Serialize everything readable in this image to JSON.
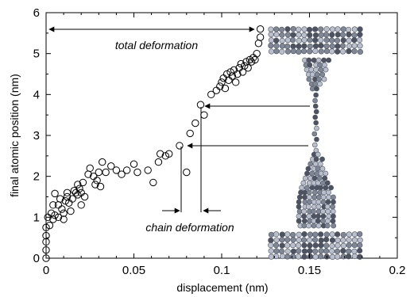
{
  "chart_data": {
    "type": "scatter",
    "xlabel": "displacement (nm)",
    "ylabel": "final atomic position (nm)",
    "xlim": [
      0,
      0.2
    ],
    "ylim": [
      0,
      6
    ],
    "xticks": [
      {
        "value": 0,
        "label": "0"
      },
      {
        "value": 0.05,
        "label": "0.05"
      },
      {
        "value": 0.1,
        "label": "0.1"
      },
      {
        "value": 0.15,
        "label": "0.15"
      },
      {
        "value": 0.2,
        "label": "0.2"
      }
    ],
    "yticks": [
      {
        "value": 0,
        "label": "0"
      },
      {
        "value": 1,
        "label": "1"
      },
      {
        "value": 2,
        "label": "2"
      },
      {
        "value": 3,
        "label": "3"
      },
      {
        "value": 4,
        "label": "4"
      },
      {
        "value": 5,
        "label": "5"
      },
      {
        "value": 6,
        "label": "6"
      }
    ],
    "grid": false,
    "marker": "open-circle",
    "points": [
      [
        0,
        0.0
      ],
      [
        0,
        0.2
      ],
      [
        0,
        0.4
      ],
      [
        0,
        0.55
      ],
      [
        0,
        0.75
      ],
      [
        0.002,
        0.8
      ],
      [
        0.001,
        1.0
      ],
      [
        0.003,
        1.1
      ],
      [
        0.004,
        0.95
      ],
      [
        0.005,
        1.05
      ],
      [
        0.004,
        1.3
      ],
      [
        0.005,
        1.58
      ],
      [
        0.007,
        1.3
      ],
      [
        0.008,
        1.45
      ],
      [
        0.007,
        1.0
      ],
      [
        0.009,
        1.2
      ],
      [
        0.01,
        1.1
      ],
      [
        0.011,
        1.4
      ],
      [
        0.012,
        1.6
      ],
      [
        0.01,
        0.95
      ],
      [
        0.013,
        1.35
      ],
      [
        0.014,
        1.15
      ],
      [
        0.012,
        1.5
      ],
      [
        0.015,
        1.45
      ],
      [
        0.016,
        1.65
      ],
      [
        0.017,
        1.6
      ],
      [
        0.018,
        1.55
      ],
      [
        0.019,
        1.7
      ],
      [
        0.02,
        1.6
      ],
      [
        0.021,
        1.85
      ],
      [
        0.018,
        1.8
      ],
      [
        0.02,
        1.3
      ],
      [
        0.022,
        1.5
      ],
      [
        0.024,
        2.05
      ],
      [
        0.025,
        2.2
      ],
      [
        0.027,
        2.0
      ],
      [
        0.028,
        1.8
      ],
      [
        0.029,
        1.9
      ],
      [
        0.03,
        2.1
      ],
      [
        0.031,
        1.75
      ],
      [
        0.032,
        2.35
      ],
      [
        0.034,
        2.1
      ],
      [
        0.037,
        2.25
      ],
      [
        0.04,
        2.15
      ],
      [
        0.043,
        2.05
      ],
      [
        0.046,
        2.15
      ],
      [
        0.05,
        2.3
      ],
      [
        0.052,
        2.1
      ],
      [
        0.058,
        2.15
      ],
      [
        0.061,
        1.85
      ],
      [
        0.064,
        2.35
      ],
      [
        0.065,
        2.55
      ],
      [
        0.068,
        2.5
      ],
      [
        0.07,
        2.55
      ],
      [
        0.076,
        2.75
      ],
      [
        0.08,
        2.1
      ],
      [
        0.082,
        3.05
      ],
      [
        0.085,
        3.3
      ],
      [
        0.088,
        3.75
      ],
      [
        0.09,
        3.5
      ],
      [
        0.094,
        4.0
      ],
      [
        0.097,
        4.1
      ],
      [
        0.099,
        4.2
      ],
      [
        0.1,
        4.3
      ],
      [
        0.101,
        4.4
      ],
      [
        0.102,
        4.15
      ],
      [
        0.103,
        4.5
      ],
      [
        0.104,
        4.35
      ],
      [
        0.105,
        4.55
      ],
      [
        0.106,
        4.45
      ],
      [
        0.107,
        4.6
      ],
      [
        0.108,
        4.3
      ],
      [
        0.109,
        4.5
      ],
      [
        0.11,
        4.65
      ],
      [
        0.111,
        4.75
      ],
      [
        0.112,
        4.55
      ],
      [
        0.113,
        4.7
      ],
      [
        0.114,
        4.8
      ],
      [
        0.115,
        4.65
      ],
      [
        0.116,
        4.85
      ],
      [
        0.117,
        4.8
      ],
      [
        0.118,
        4.9
      ],
      [
        0.119,
        4.85
      ],
      [
        0.12,
        5.0
      ],
      [
        0.121,
        5.25
      ],
      [
        0.122,
        5.4
      ],
      [
        0.122,
        5.6
      ]
    ],
    "annotations": {
      "total": {
        "text": "total deformation"
      },
      "chain": {
        "text": "chain deformation"
      }
    }
  },
  "colors": {
    "axis": "#000000",
    "marker_stroke": "#000000",
    "atom_light": "#b9bfcc",
    "atom_mid": "#7f8796",
    "atom_dark": "#4d5360"
  },
  "inset_icon": "atomic-nanowire-simulation"
}
